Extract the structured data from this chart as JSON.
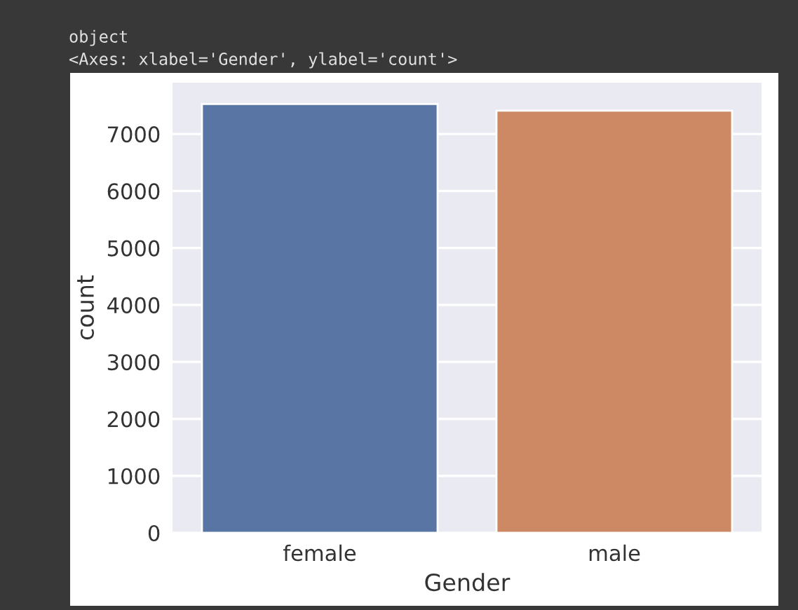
{
  "chart_data": {
    "type": "bar",
    "categories": [
      "female",
      "male"
    ],
    "colors": [
      "#5975a4",
      "#cc8963"
    ],
    "values": [
      7525,
      7410
    ],
    "xlabel": "Gender",
    "ylabel": "count",
    "ylim": [
      0,
      7900
    ],
    "yticks": [
      0,
      1000,
      2000,
      3000,
      4000,
      5000,
      6000,
      7000
    ],
    "grid": "y",
    "legend": false,
    "annotations": [
      "object",
      "<Axes: xlabel='Gender', ylabel='count'>"
    ]
  }
}
